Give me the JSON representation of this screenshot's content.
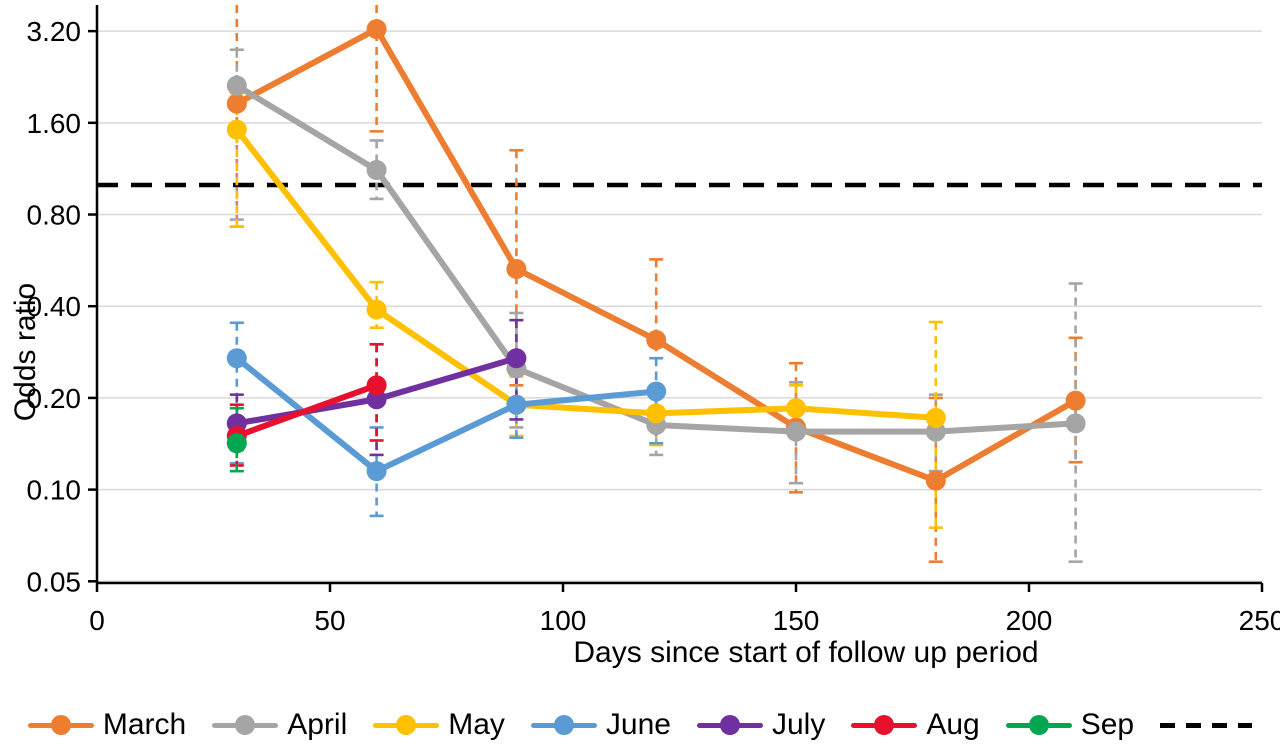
{
  "chart_data": {
    "type": "line",
    "title": "",
    "xlabel": "Days since start of follow up period",
    "ylabel": "Odds ratio",
    "x_scale": "linear",
    "y_scale": "log2",
    "xlim": [
      0,
      250
    ],
    "ylim": [
      0.05,
      3.2
    ],
    "x_ticks": [
      0,
      50,
      100,
      150,
      200,
      250
    ],
    "y_ticks": [
      "3.20",
      "1.60",
      "0.80",
      "0.40",
      "0.20",
      "0.10",
      "0.05"
    ],
    "grid": "horizontal",
    "legend_position": "bottom",
    "reference_line": {
      "value": 1.0,
      "style": "dashed",
      "color": "#000000",
      "has_legend_entry": true,
      "legend_label": ""
    },
    "error_bars": {
      "style": "dashed",
      "caps": true
    },
    "series": [
      {
        "name": "March",
        "color": "#ED7D31",
        "x": [
          30,
          60,
          90,
          120,
          150,
          180,
          210
        ],
        "y": [
          1.85,
          3.25,
          0.53,
          0.31,
          0.16,
          0.107,
          0.196
        ],
        "ci": [
          [
            0.73,
            4.3
          ],
          [
            1.5,
            4.3
          ],
          [
            0.22,
            1.3
          ],
          [
            0.18,
            0.57
          ],
          [
            0.098,
            0.26
          ],
          [
            0.058,
            0.2
          ],
          [
            0.123,
            0.315
          ]
        ]
      },
      {
        "name": "April",
        "color": "#A5A5A5",
        "x": [
          30,
          60,
          90,
          120,
          150,
          180,
          210
        ],
        "y": [
          2.12,
          1.12,
          0.25,
          0.163,
          0.155,
          0.155,
          0.165
        ],
        "ci": [
          [
            0.77,
            2.78
          ],
          [
            0.9,
            1.4
          ],
          [
            0.16,
            0.38
          ],
          [
            0.13,
            0.205
          ],
          [
            0.105,
            0.225
          ],
          [
            0.115,
            0.205
          ],
          [
            0.058,
            0.475
          ]
        ]
      },
      {
        "name": "May",
        "color": "#FFC000",
        "x": [
          30,
          60,
          90,
          120,
          150,
          180
        ],
        "y": [
          1.52,
          0.39,
          0.19,
          0.178,
          0.185,
          0.172
        ],
        "ci": [
          [
            0.73,
            2.0
          ],
          [
            0.34,
            0.48
          ],
          [
            0.15,
            0.235
          ],
          [
            0.14,
            0.215
          ],
          [
            0.148,
            0.22
          ],
          [
            0.075,
            0.355
          ]
        ]
      },
      {
        "name": "June",
        "color": "#5B9BD5",
        "x": [
          30,
          60,
          90,
          120
        ],
        "y": [
          0.27,
          0.115,
          0.19,
          0.21
        ],
        "ci": [
          [
            0.122,
            0.353
          ],
          [
            0.082,
            0.16
          ],
          [
            0.148,
            0.24
          ],
          [
            0.142,
            0.27
          ]
        ]
      },
      {
        "name": "July",
        "color": "#7030A0",
        "x": [
          30,
          60,
          90
        ],
        "y": [
          0.165,
          0.198,
          0.27
        ],
        "ci": [
          [
            0.135,
            0.205
          ],
          [
            0.13,
            0.3
          ],
          [
            0.17,
            0.36
          ]
        ]
      },
      {
        "name": "Aug",
        "color": "#E8112D",
        "x": [
          30,
          60
        ],
        "y": [
          0.15,
          0.22
        ],
        "ci": [
          [
            0.12,
            0.19
          ],
          [
            0.145,
            0.3
          ]
        ]
      },
      {
        "name": "Sep",
        "color": "#00A651",
        "x": [
          30
        ],
        "y": [
          0.142
        ],
        "ci": [
          [
            0.115,
            0.185
          ]
        ]
      }
    ]
  }
}
